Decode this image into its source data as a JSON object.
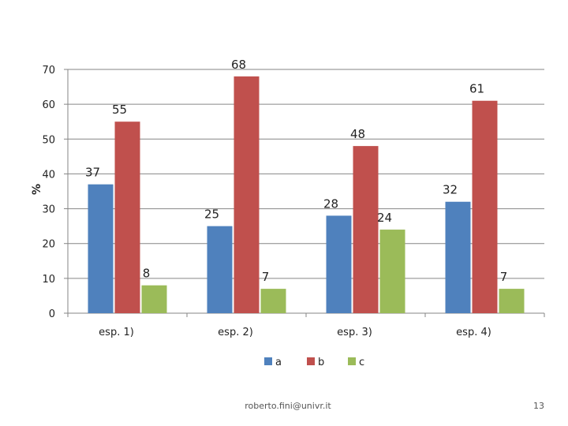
{
  "chart_data": {
    "type": "bar",
    "title": "",
    "xlabel": "",
    "ylabel": "%",
    "ylim": [
      0,
      70
    ],
    "yticks": [
      0,
      10,
      20,
      30,
      40,
      50,
      60,
      70
    ],
    "grid": true,
    "legend_position": "bottom",
    "categories": [
      "esp. 1)",
      "esp. 2)",
      "esp. 3)",
      "esp. 4)"
    ],
    "series": [
      {
        "name": "a",
        "color": "#4F81BD",
        "values": [
          37,
          25,
          28,
          32
        ]
      },
      {
        "name": "b",
        "color": "#C0504D",
        "values": [
          55,
          68,
          48,
          61
        ]
      },
      {
        "name": "c",
        "color": "#9BBB59",
        "values": [
          8,
          7,
          24,
          7
        ]
      }
    ]
  },
  "footer": {
    "email": "roberto.fini@univr.it",
    "page_number": "13"
  }
}
